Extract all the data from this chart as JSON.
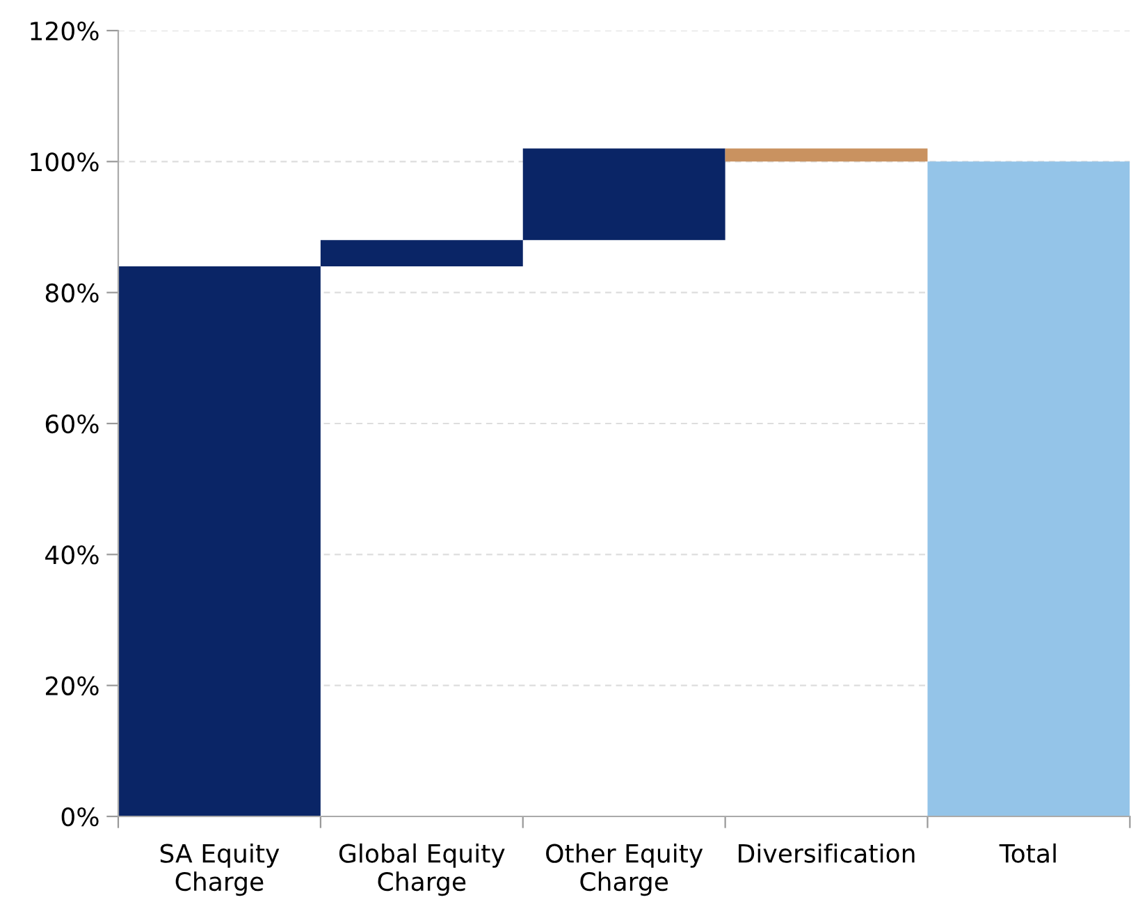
{
  "chart_data": {
    "type": "bar",
    "categories": [
      "SA Equity\nCharge",
      "Global Equity\nCharge",
      "Other Equity\nCharge",
      "Diversification",
      "Total"
    ],
    "values": [
      84,
      4,
      14,
      -2,
      100
    ],
    "base": [
      0,
      84,
      88,
      102,
      0
    ],
    "colors": [
      "#0a2566",
      "#0a2566",
      "#0a2566",
      "#c99260",
      "#94c4e8"
    ],
    "ylim": [
      0,
      120
    ],
    "yticks": [
      {
        "value": 0,
        "label": "0%"
      },
      {
        "value": 20,
        "label": "20%"
      },
      {
        "value": 40,
        "label": "40%"
      },
      {
        "value": 60,
        "label": "60%"
      },
      {
        "value": 80,
        "label": "80%"
      },
      {
        "value": 100,
        "label": "100%"
      },
      {
        "value": 120,
        "label": "120%"
      }
    ],
    "grid": "y"
  }
}
